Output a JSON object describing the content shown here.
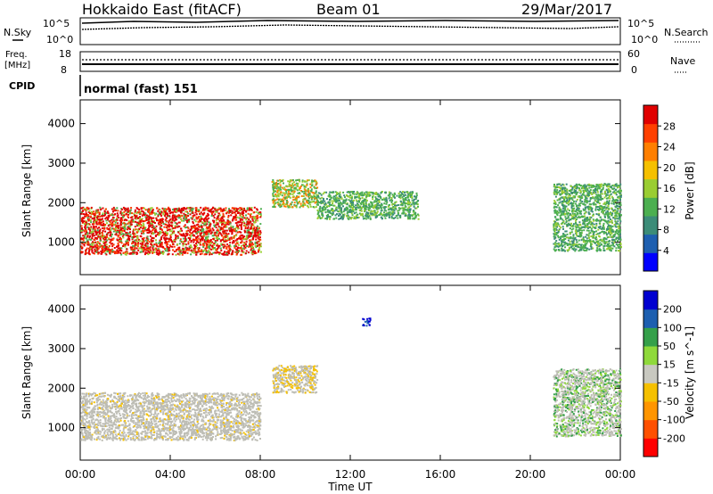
{
  "header": {
    "radar": "Hokkaido East (fitACF)",
    "beam": "Beam 01",
    "date": "29/Mar/2017"
  },
  "status_panel": {
    "nsky_label": "N.Sky",
    "nsky_top": "10^5",
    "nsky_bottom": "10^0",
    "nsearch_label": "N.Search",
    "nsearch_top": "10^5",
    "nsearch_bottom": "10^0",
    "freq_label": "Freq.",
    "freq_unit": "[MHz]",
    "freq_top": "18",
    "freq_bottom": "8",
    "nave_label": "Nave",
    "nave_top": "60",
    "nave_bottom": "0",
    "cpid_label": "CPID",
    "cpid_value": "normal (fast) 151"
  },
  "chart_data": [
    {
      "type": "heatmap",
      "title": "",
      "ylabel": "Slant Range [km]",
      "xlabel": "",
      "ylim": [
        180,
        4600
      ],
      "x_range_hours": [
        0,
        24
      ],
      "y_ticks": [
        "1000",
        "2000",
        "3000",
        "4000"
      ],
      "colorbar": {
        "label": "Power [dB]",
        "ticks": [
          "4",
          "8",
          "12",
          "16",
          "20",
          "24",
          "28"
        ],
        "range": [
          0,
          32
        ]
      },
      "features": [
        {
          "start_hour": 0.0,
          "end_hour": 8.0,
          "range_low_km": 700,
          "range_high_km": 1900,
          "level": "high"
        },
        {
          "start_hour": 8.5,
          "end_hour": 10.5,
          "range_low_km": 1900,
          "range_high_km": 2600,
          "level": "medium"
        },
        {
          "start_hour": 10.5,
          "end_hour": 15.0,
          "range_low_km": 1600,
          "range_high_km": 2300,
          "level": "low"
        },
        {
          "start_hour": 21.0,
          "end_hour": 24.0,
          "range_low_km": 800,
          "range_high_km": 2500,
          "level": "low"
        }
      ]
    },
    {
      "type": "heatmap",
      "title": "",
      "ylabel": "Slant Range [km]",
      "xlabel": "Time UT",
      "ylim": [
        180,
        4600
      ],
      "x_ticks": [
        "00:00",
        "04:00",
        "08:00",
        "12:00",
        "16:00",
        "20:00",
        "00:00"
      ],
      "y_ticks": [
        "1000",
        "2000",
        "3000",
        "4000"
      ],
      "colorbar": {
        "label": "Velocity [m s^-1]",
        "ticks": [
          "200",
          "100",
          "50",
          "15",
          "-15",
          "-50",
          "-100",
          "-200"
        ]
      },
      "features": [
        {
          "start_hour": 0.0,
          "end_hour": 8.0,
          "range_low_km": 700,
          "range_high_km": 1900,
          "value": "ground scatter (~0 m/s)"
        },
        {
          "start_hour": 8.5,
          "end_hour": 10.5,
          "range_low_km": 1900,
          "range_high_km": 2600,
          "value": "-50"
        },
        {
          "start_hour": 12.5,
          "end_hour": 12.9,
          "range_low_km": 3600,
          "range_high_km": 3800,
          "value": "200"
        },
        {
          "start_hour": 21.0,
          "end_hour": 24.0,
          "range_low_km": 800,
          "range_high_km": 2500,
          "value": "15"
        }
      ]
    }
  ],
  "colors": {
    "power": [
      "#0000ff",
      "#1e5fb0",
      "#3c8c78",
      "#4caf50",
      "#9acd32",
      "#f5c000",
      "#ff7f00",
      "#ff4000",
      "#e00000"
    ],
    "velocity": [
      "#ff0000",
      "#ff5000",
      "#ff9500",
      "#f5c000",
      "#c8c8c0",
      "#8fd93b",
      "#35a04a",
      "#1d5fb0",
      "#0000d0"
    ],
    "ground_scatter": "#bdbdb5"
  }
}
